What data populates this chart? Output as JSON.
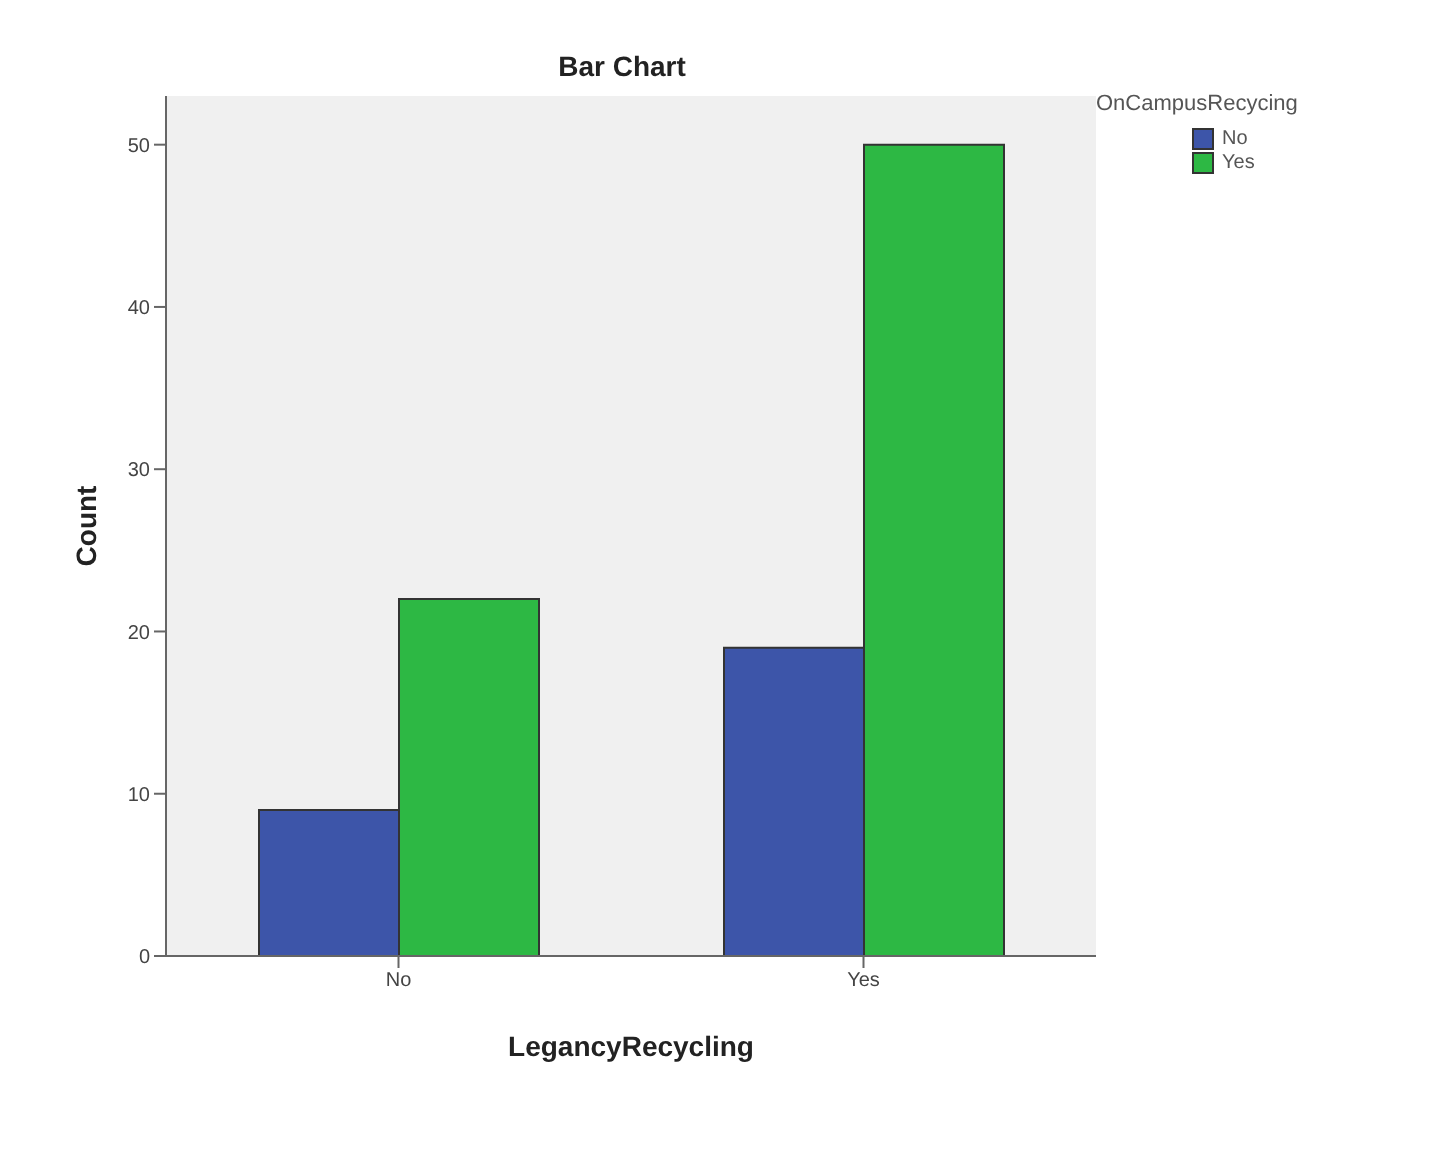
{
  "chart_data": {
    "type": "bar",
    "title": "Bar Chart",
    "xlabel": "LegancyRecycling",
    "ylabel": "Count",
    "legend_title": "OnCampusRecycing",
    "categories": [
      "No",
      "Yes"
    ],
    "series": [
      {
        "name": "No",
        "color": "#3d55a9",
        "values": [
          9,
          19
        ]
      },
      {
        "name": "Yes",
        "color": "#2db844",
        "values": [
          22,
          50
        ]
      }
    ],
    "ylim": [
      0,
      53
    ],
    "yticks": [
      0,
      10,
      20,
      30,
      40,
      50
    ],
    "legend": "top right"
  }
}
